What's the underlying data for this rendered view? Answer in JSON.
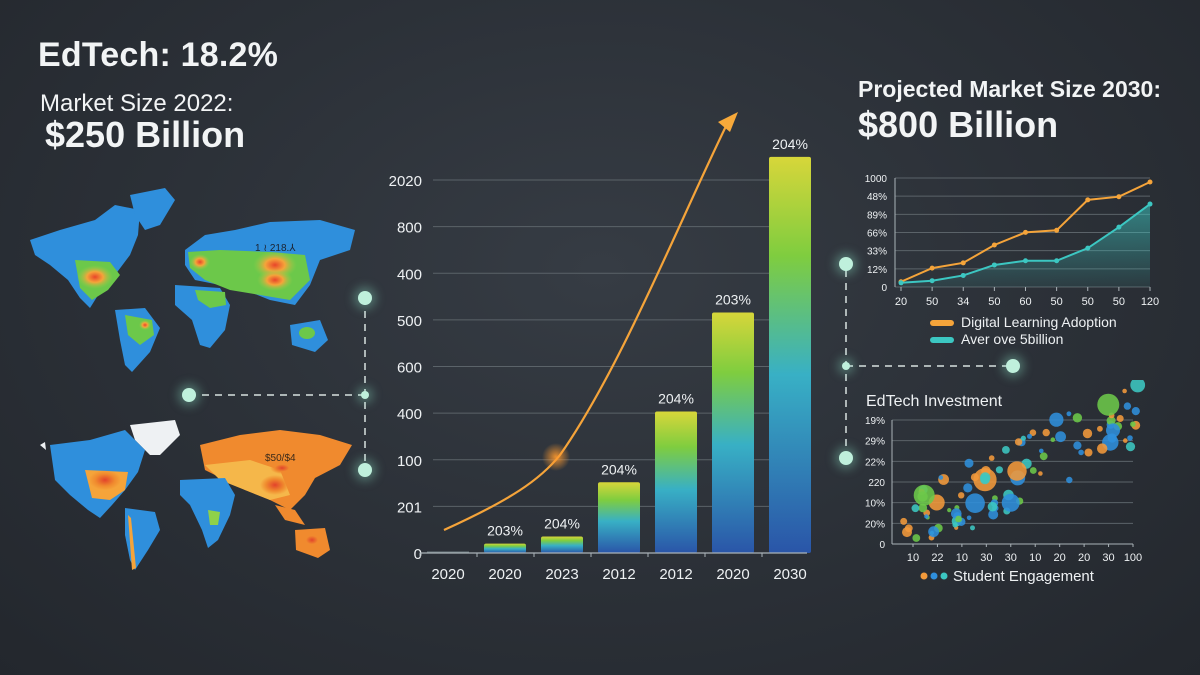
{
  "header": {
    "headline": "EdTech: 18.2%",
    "market_size_label": "Market Size 2022:",
    "market_size_value": "$250 Billion",
    "projected_label": "Projected Market Size 2030:",
    "projected_value": "$800 Billion"
  },
  "maps": {
    "top_map_label": "1 ≀ 218.⅄",
    "bottom_map_label": "$50/$4"
  },
  "colors": {
    "background": "#2b3037",
    "orange": "#f5a43a",
    "teal": "#3cc7c2",
    "green": "#7fcd3f",
    "blue": "#2f8fdc",
    "node": "#bff0dc"
  },
  "chart_data": [
    {
      "type": "bar",
      "title": "",
      "categories": [
        "2020",
        "2020",
        "2023",
        "2012",
        "2012",
        "2020",
        "2030"
      ],
      "values": [
        0,
        20,
        35,
        150,
        300,
        510,
        840
      ],
      "bar_labels": [
        "",
        "203%",
        "204%",
        "204%",
        "204%",
        "203%",
        "204%"
      ],
      "y_tick_labels": [
        "0",
        "201",
        "100",
        "400",
        "600",
        "500",
        "400",
        "800",
        "2020"
      ],
      "xlabel": "",
      "ylabel": "",
      "grid": true,
      "overlay": "orange exponential growth curve with arrow",
      "ylim": [
        0,
        880
      ]
    },
    {
      "type": "line",
      "title": "",
      "x_tick_labels": [
        "20",
        "50",
        "34",
        "50",
        "60",
        "50",
        "50",
        "50",
        "120"
      ],
      "y_tick_labels": [
        "0",
        "12%",
        "33%",
        "66%",
        "89%",
        "48%",
        "1000"
      ],
      "series": [
        {
          "name": "Digital Learning Adoption",
          "color": "#f5a43a",
          "values": [
            5,
            18,
            23,
            40,
            52,
            54,
            83,
            86,
            100
          ]
        },
        {
          "name": "Aver ove 5billion",
          "color": "#3cc7c2",
          "values": [
            4,
            6,
            11,
            21,
            25,
            25,
            37,
            57,
            79
          ]
        }
      ],
      "legend_position": "bottom",
      "grid": true,
      "ylim": [
        0,
        100
      ]
    },
    {
      "type": "scatter",
      "title": "EdTech Investment",
      "x_tick_labels": [
        "10",
        "22",
        "10",
        "30",
        "30",
        "10",
        "20",
        "20",
        "30",
        "100"
      ],
      "y_tick_labels": [
        "0",
        "20%",
        "10%",
        "220",
        "22%",
        "29%",
        "19%"
      ],
      "legend": "Student Engagement",
      "series_colors": [
        "#f29a3b",
        "#2f8fdc",
        "#3cc7c2",
        "#6cc84a"
      ],
      "grid": true
    }
  ]
}
